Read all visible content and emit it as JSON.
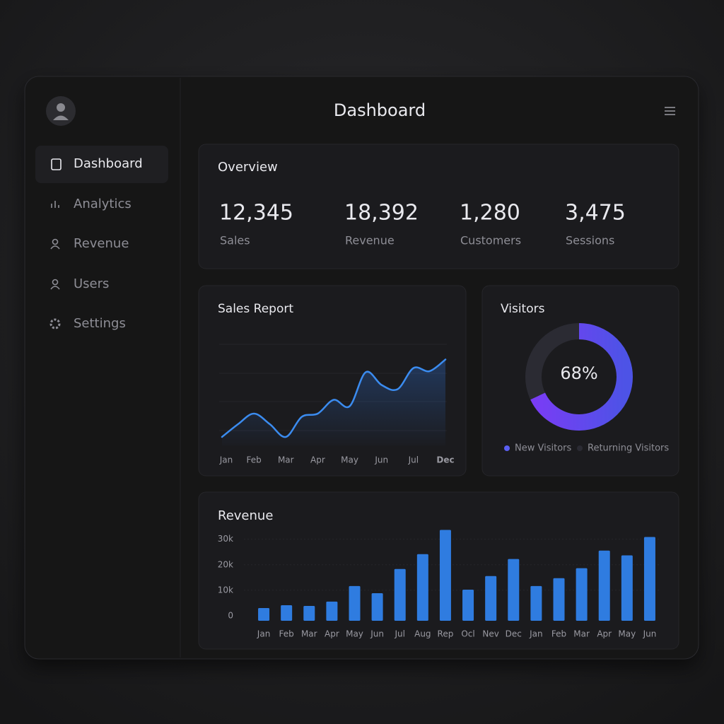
{
  "header": {
    "title": "Dashboard"
  },
  "sidebar": {
    "items": [
      "Dashboard",
      "Analytics",
      "Revenue",
      "Users",
      "Settings"
    ],
    "active": 0
  },
  "overview": {
    "title": "Overview",
    "stats": [
      {
        "value": "12,345",
        "label": "Sales"
      },
      {
        "value": "18,392",
        "label": "Revenue"
      },
      {
        "value": "1,280",
        "label": "Customers"
      },
      {
        "value": "3,475",
        "label": "Sessions"
      }
    ]
  },
  "sales_report": {
    "type": "line",
    "title": "Sales Report",
    "categories": [
      "Jan",
      null,
      "Feb",
      null,
      "Mar",
      null,
      "Apr",
      null,
      "May",
      null,
      "Jun",
      null,
      "Jul",
      null,
      "Dec"
    ],
    "values": [
      8,
      20,
      30,
      20,
      8,
      27,
      30,
      43,
      37,
      69,
      57,
      53,
      73,
      70,
      81
    ],
    "ylim": [
      0,
      100
    ],
    "color": "#3b8cf0"
  },
  "visitors": {
    "type": "donut",
    "title": "Visitors",
    "values": [
      68
    ],
    "value_labels": [
      "68%"
    ],
    "legend": [
      {
        "name": "New Visitors",
        "color": "#5a5ff2"
      },
      {
        "name": "Returning Visitors",
        "color": "#2b2b33"
      }
    ]
  },
  "revenue": {
    "type": "bar",
    "title": "Revenue",
    "categories": [
      "Jan",
      "Feb",
      "Mar",
      "Apr",
      "May",
      "Jun",
      "Jul",
      "Aug",
      "Rep",
      "Ocl",
      "Nev",
      "Dec",
      "Jan",
      "Feb",
      "Mar",
      "Apr",
      "May",
      "Jun"
    ],
    "values": [
      5000,
      6100,
      5800,
      7500,
      13600,
      10800,
      20300,
      26100,
      35600,
      12200,
      17500,
      24200,
      13600,
      16700,
      20600,
      27500,
      25600,
      32800
    ],
    "ylim": [
      0,
      36000
    ],
    "yticks": [
      0,
      {
        "value": 10000,
        "label": "10k"
      },
      {
        "value": 20000,
        "label": "20k"
      },
      {
        "value": 30000,
        "label": "30k"
      }
    ],
    "grid": true,
    "color": "#2f7ce0"
  }
}
